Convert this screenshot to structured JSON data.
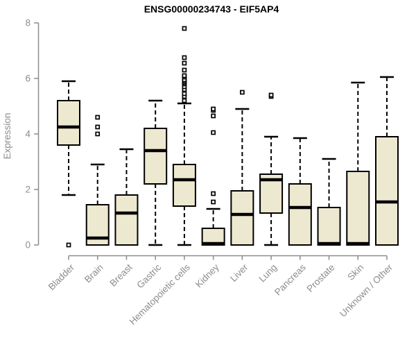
{
  "chart_data": {
    "type": "boxplot",
    "title": "ENSG00000234743 - EIF5AP4",
    "ylabel": "Expression",
    "xlabel": "",
    "ylim": [
      0,
      8
    ],
    "yticks": [
      0,
      2,
      4,
      6,
      8
    ],
    "grid": false,
    "legend": "none",
    "x_tick_rotation_deg": 45,
    "categories": [
      "Bladder",
      "Brain",
      "Breast",
      "Gastric",
      "Hematopoietic cells",
      "Kidney",
      "Liver",
      "Lung",
      "Pancreas",
      "Prostate",
      "Skin",
      "Unknown / Other"
    ],
    "boxes": [
      {
        "category": "Bladder",
        "whisker_low": 1.8,
        "q1": 3.6,
        "median": 4.25,
        "q3": 5.2,
        "whisker_high": 5.9,
        "outliers": [
          0.0
        ]
      },
      {
        "category": "Brain",
        "whisker_low": 0,
        "q1": 0,
        "median": 0.25,
        "q3": 1.45,
        "whisker_high": 2.9,
        "outliers": [
          4.0,
          4.25,
          4.6
        ]
      },
      {
        "category": "Breast",
        "whisker_low": 0,
        "q1": 0,
        "median": 1.15,
        "q3": 1.8,
        "whisker_high": 3.45,
        "outliers": []
      },
      {
        "category": "Gastric",
        "whisker_low": 0,
        "q1": 2.2,
        "median": 3.4,
        "q3": 4.2,
        "whisker_high": 5.2,
        "outliers": []
      },
      {
        "category": "Hematopoietic cells",
        "whisker_low": 0,
        "q1": 1.4,
        "median": 2.35,
        "q3": 2.9,
        "whisker_high": 5.1,
        "outliers": [
          5.2,
          5.35,
          5.45,
          5.6,
          5.7,
          5.8,
          5.85,
          5.9,
          5.95,
          6.05,
          6.1,
          6.3,
          6.55,
          6.75,
          7.8
        ]
      },
      {
        "category": "Kidney",
        "whisker_low": 0,
        "q1": 0,
        "median": 0.05,
        "q3": 0.6,
        "whisker_high": 1.3,
        "outliers": [
          1.55,
          1.85,
          4.05,
          4.65,
          4.85,
          4.9
        ]
      },
      {
        "category": "Liver",
        "whisker_low": 0,
        "q1": 0,
        "median": 1.1,
        "q3": 1.95,
        "whisker_high": 4.9,
        "outliers": [
          5.5
        ]
      },
      {
        "category": "Lung",
        "whisker_low": 0,
        "q1": 1.15,
        "median": 2.35,
        "q3": 2.55,
        "whisker_high": 3.9,
        "outliers": [
          5.35,
          5.4
        ]
      },
      {
        "category": "Pancreas",
        "whisker_low": 0,
        "q1": 0,
        "median": 1.35,
        "q3": 2.2,
        "whisker_high": 3.85,
        "outliers": []
      },
      {
        "category": "Prostate",
        "whisker_low": 0,
        "q1": 0,
        "median": 0.05,
        "q3": 1.35,
        "whisker_high": 3.1,
        "outliers": []
      },
      {
        "category": "Skin",
        "whisker_low": 0,
        "q1": 0,
        "median": 0.05,
        "q3": 2.65,
        "whisker_high": 5.85,
        "outliers": []
      },
      {
        "category": "Unknown / Other",
        "whisker_low": 0,
        "q1": 0,
        "median": 1.55,
        "q3": 3.9,
        "whisker_high": 6.05,
        "outliers": []
      }
    ],
    "colors": {
      "box_fill": "#EDE8D0",
      "box_stroke": "#000000",
      "median": "#000000",
      "whisker": "#000000",
      "outlier_fill": "#FFFFFF",
      "axis": "#8C8C8C",
      "title": "#000000",
      "background": "#FFFFFF"
    }
  }
}
